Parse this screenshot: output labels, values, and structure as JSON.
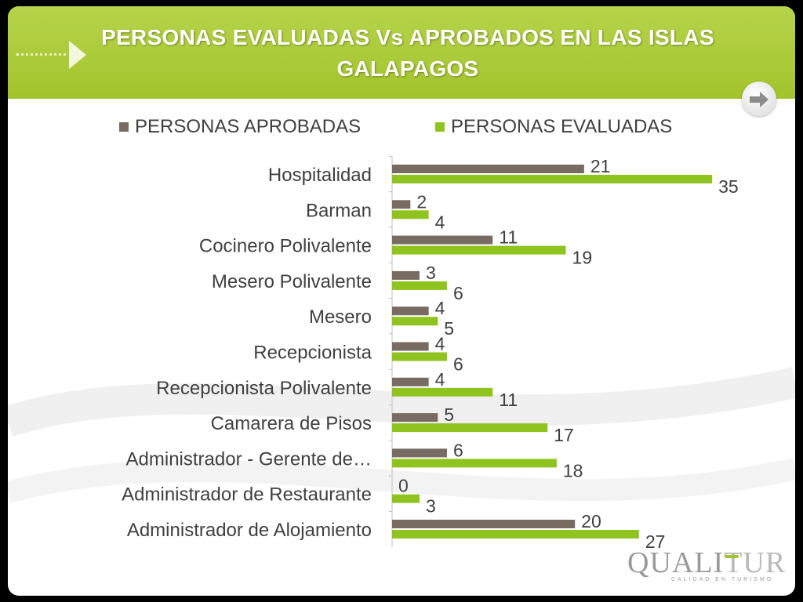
{
  "slide": {
    "title": "PERSONAS EVALUADAS Vs APROBADOS EN LAS ISLAS GALAPAGOS"
  },
  "logo": {
    "text_main": "QUALI",
    "text_accent": "TUR",
    "subtitle": "CALIDAD EN TURISMO"
  },
  "colors": {
    "header": "#a3c42c",
    "aprobadas": "#786c62",
    "evaluadas": "#8fc31f"
  },
  "chart_data": {
    "type": "bar",
    "orientation": "horizontal",
    "categories": [
      "Hospitalidad",
      "Barman",
      "Cocinero Polivalente",
      "Mesero Polivalente",
      "Mesero",
      "Recepcionista",
      "Recepcionista Polivalente",
      "Camarera de Pisos",
      "Administrador - Gerente de…",
      "Administrador de Restaurante",
      "Administrador de Alojamiento"
    ],
    "series": [
      {
        "name": "PERSONAS APROBADAS",
        "color": "#786c62",
        "values": [
          21,
          2,
          11,
          3,
          4,
          4,
          4,
          5,
          6,
          0,
          20
        ]
      },
      {
        "name": "PERSONAS EVALUADAS",
        "color": "#8fc31f",
        "values": [
          35,
          4,
          19,
          6,
          5,
          6,
          11,
          17,
          18,
          3,
          27
        ]
      }
    ],
    "xlim": [
      0,
      35
    ],
    "grid": false,
    "legend": "top"
  }
}
